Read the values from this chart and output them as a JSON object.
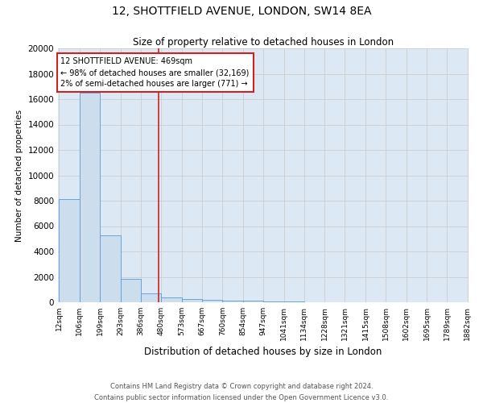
{
  "title": "12, SHOTTFIELD AVENUE, LONDON, SW14 8EA",
  "subtitle": "Size of property relative to detached houses in London",
  "xlabel": "Distribution of detached houses by size in London",
  "ylabel": "Number of detached properties",
  "bar_values": [
    8100,
    16500,
    5300,
    1850,
    700,
    350,
    250,
    200,
    150,
    150,
    80,
    50,
    30,
    20,
    10,
    5,
    5,
    3,
    2,
    1
  ],
  "bin_edges": [
    12,
    106,
    199,
    293,
    386,
    480,
    573,
    667,
    760,
    854,
    947,
    1041,
    1134,
    1228,
    1321,
    1415,
    1508,
    1602,
    1695,
    1789,
    1882
  ],
  "xlabels": [
    "12sqm",
    "106sqm",
    "199sqm",
    "293sqm",
    "386sqm",
    "480sqm",
    "573sqm",
    "667sqm",
    "760sqm",
    "854sqm",
    "947sqm",
    "1041sqm",
    "1134sqm",
    "1228sqm",
    "1321sqm",
    "1415sqm",
    "1508sqm",
    "1602sqm",
    "1695sqm",
    "1789sqm",
    "1882sqm"
  ],
  "bar_color": "#ccdded",
  "bar_edge_color": "#5b9bd5",
  "vline_x": 469,
  "vline_color": "#cc2222",
  "annotation_text": "12 SHOTTFIELD AVENUE: 469sqm\n← 98% of detached houses are smaller (32,169)\n2% of semi-detached houses are larger (771) →",
  "annotation_box_color": "#ffffff",
  "annotation_box_edge": "#cc2222",
  "ylim": [
    0,
    20000
  ],
  "yticks": [
    0,
    2000,
    4000,
    6000,
    8000,
    10000,
    12000,
    14000,
    16000,
    18000,
    20000
  ],
  "grid_color": "#cccccc",
  "bg_color": "#dce9f5",
  "footer_line1": "Contains HM Land Registry data © Crown copyright and database right 2024.",
  "footer_line2": "Contains public sector information licensed under the Open Government Licence v3.0."
}
